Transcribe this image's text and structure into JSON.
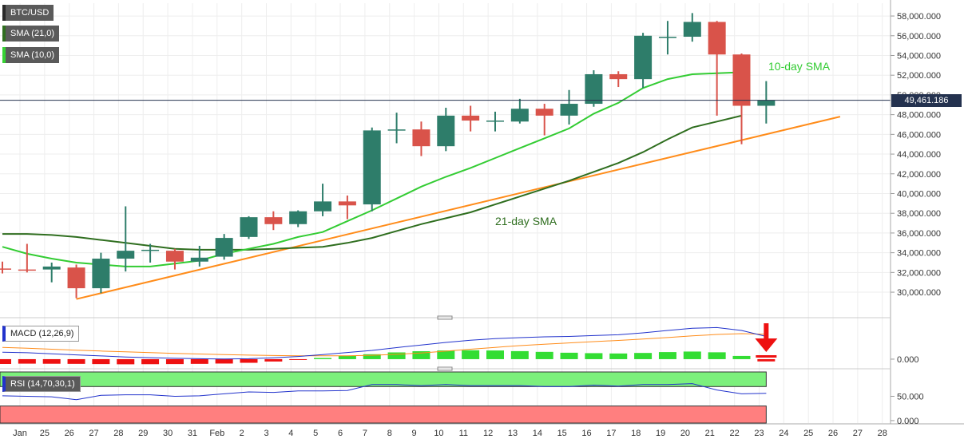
{
  "chart_data": [
    {
      "type": "candlestick",
      "symbol": "BTC/USD",
      "x_ticks": [
        "Jan",
        "25",
        "26",
        "27",
        "28",
        "29",
        "30",
        "31",
        "Feb",
        "2",
        "3",
        "4",
        "5",
        "6",
        "7",
        "8",
        "9",
        "10",
        "11",
        "12",
        "13",
        "14",
        "15",
        "16",
        "17",
        "18",
        "19",
        "20",
        "21",
        "22",
        "23",
        "24",
        "25",
        "26",
        "27",
        "28"
      ],
      "y_ticks": [
        "30,000.000",
        "32,000.000",
        "34,000.000",
        "36,000.000",
        "38,000.000",
        "40,000.000",
        "42,000.000",
        "44,000.000",
        "46,000.000",
        "48,000.000",
        "50,000.000",
        "52,000.000",
        "54,000.000",
        "56,000.000",
        "58,000.000"
      ],
      "y_tick_values": [
        30000,
        32000,
        34000,
        36000,
        38000,
        40000,
        42000,
        44000,
        46000,
        48000,
        50000,
        52000,
        54000,
        56000,
        58000
      ],
      "ylim": [
        27900,
        59300
      ],
      "last_price_label": "49,461.186",
      "last_price": 49461.186,
      "candles": [
        {
          "o": 32400,
          "h": 33100,
          "l": 31900,
          "c": 32300
        },
        {
          "o": 32300,
          "h": 34900,
          "l": 32000,
          "c": 32200
        },
        {
          "o": 32300,
          "h": 33000,
          "l": 31000,
          "c": 32600
        },
        {
          "o": 32500,
          "h": 32800,
          "l": 29400,
          "c": 30400
        },
        {
          "o": 30400,
          "h": 34000,
          "l": 29900,
          "c": 33400
        },
        {
          "o": 33400,
          "h": 38700,
          "l": 32100,
          "c": 34200
        },
        {
          "o": 34200,
          "h": 34900,
          "l": 33000,
          "c": 34300
        },
        {
          "o": 34200,
          "h": 34400,
          "l": 32300,
          "c": 33100
        },
        {
          "o": 33100,
          "h": 34700,
          "l": 32600,
          "c": 33500
        },
        {
          "o": 33600,
          "h": 35900,
          "l": 33300,
          "c": 35500
        },
        {
          "o": 35600,
          "h": 37700,
          "l": 35400,
          "c": 37600
        },
        {
          "o": 37600,
          "h": 38200,
          "l": 36300,
          "c": 36900
        },
        {
          "o": 36900,
          "h": 38300,
          "l": 36600,
          "c": 38200
        },
        {
          "o": 38200,
          "h": 41000,
          "l": 37700,
          "c": 39200
        },
        {
          "o": 39200,
          "h": 39800,
          "l": 37400,
          "c": 38800
        },
        {
          "o": 38900,
          "h": 46700,
          "l": 38200,
          "c": 46400
        },
        {
          "o": 46500,
          "h": 48200,
          "l": 45100,
          "c": 46500
        },
        {
          "o": 46500,
          "h": 47300,
          "l": 43800,
          "c": 44800
        },
        {
          "o": 44800,
          "h": 48700,
          "l": 44300,
          "c": 47900
        },
        {
          "o": 47900,
          "h": 48900,
          "l": 46300,
          "c": 47400
        },
        {
          "o": 47300,
          "h": 48300,
          "l": 46300,
          "c": 47400
        },
        {
          "o": 47300,
          "h": 49600,
          "l": 47100,
          "c": 48600
        },
        {
          "o": 48600,
          "h": 49100,
          "l": 45900,
          "c": 47900
        },
        {
          "o": 47900,
          "h": 50500,
          "l": 47000,
          "c": 49100
        },
        {
          "o": 49100,
          "h": 52500,
          "l": 48800,
          "c": 52100
        },
        {
          "o": 52100,
          "h": 52400,
          "l": 50800,
          "c": 51600
        },
        {
          "o": 51600,
          "h": 56300,
          "l": 50700,
          "c": 56000
        },
        {
          "o": 55900,
          "h": 57500,
          "l": 54100,
          "c": 55900
        },
        {
          "o": 55900,
          "h": 58300,
          "l": 55400,
          "c": 57400
        },
        {
          "o": 57400,
          "h": 57500,
          "l": 47900,
          "c": 54100
        },
        {
          "o": 54100,
          "h": 54200,
          "l": 45000,
          "c": 48900
        },
        {
          "o": 48900,
          "h": 51400,
          "l": 47100,
          "c": 49461
        }
      ],
      "sma10": [
        34600,
        33900,
        33400,
        33000,
        32800,
        32600,
        32600,
        32900,
        33200,
        33900,
        34400,
        34900,
        35600,
        36100,
        37200,
        38300,
        39500,
        40700,
        41700,
        42600,
        43600,
        44600,
        45600,
        46600,
        48100,
        49200,
        50700,
        51600,
        52100,
        52200,
        52300
      ],
      "sma21": [
        35900,
        35900,
        35800,
        35600,
        35300,
        35000,
        34700,
        34400,
        34300,
        34300,
        34300,
        34400,
        34500,
        34600,
        35000,
        35500,
        36200,
        36900,
        37500,
        38100,
        38900,
        39700,
        40500,
        41300,
        42200,
        43100,
        44200,
        45500,
        46700,
        47300,
        47900
      ],
      "sma10_label": "10-day SMA",
      "sma21_label": "21-day SMA",
      "trendline": [
        {
          "i": 3,
          "y": 29300
        },
        {
          "i": 34,
          "y": 47800
        }
      ],
      "legend": [
        "BTC/USD",
        "SMA (21,0)",
        "SMA (10,0)"
      ],
      "colors": {
        "up": "#2e7d6a",
        "down": "#d9534a",
        "sma10": "#33cc33",
        "sma21": "#2f6e1f",
        "trend": "#ff8c1a"
      }
    },
    {
      "type": "macd",
      "label": "MACD (12,26,9)",
      "y_ticks": [
        "0.000"
      ],
      "ylim": [
        -600,
        3500
      ],
      "macd": [
        650,
        600,
        500,
        400,
        300,
        200,
        140,
        80,
        40,
        20,
        40,
        120,
        250,
        420,
        620,
        820,
        1080,
        1320,
        1560,
        1760,
        1910,
        2010,
        2080,
        2120,
        2200,
        2280,
        2460,
        2680,
        2880,
        2950,
        2680,
        2120
      ],
      "signal": [
        1100,
        1020,
        930,
        840,
        760,
        680,
        610,
        540,
        480,
        430,
        380,
        340,
        320,
        310,
        320,
        360,
        450,
        580,
        750,
        930,
        1100,
        1260,
        1400,
        1520,
        1640,
        1750,
        1880,
        2020,
        2170,
        2310,
        2380,
        2330
      ],
      "histogram": [
        -450,
        -420,
        -430,
        -440,
        -460,
        -480,
        -470,
        -460,
        -440,
        -410,
        -340,
        -220,
        -70,
        110,
        300,
        460,
        630,
        740,
        810,
        830,
        810,
        750,
        680,
        600,
        560,
        530,
        580,
        660,
        710,
        640,
        300,
        -210
      ],
      "colors": {
        "macd": "#2233cc",
        "signal": "#ff8c1a",
        "hist_pos": "#33dd33",
        "hist_neg": "#ee1111",
        "arrow": "#ee1111"
      }
    },
    {
      "type": "rsi",
      "label": "RSI (14,70,30,1)",
      "y_ticks": [
        "50.000",
        "0.000"
      ],
      "ylim": [
        -5,
        100
      ],
      "overbought": 70,
      "oversold": 30,
      "rsi": [
        51,
        50,
        49,
        43,
        52,
        53,
        53,
        50,
        51,
        55,
        59,
        58,
        61,
        61,
        62,
        74,
        74,
        72,
        74,
        72,
        72,
        72,
        70,
        70,
        73,
        71,
        74,
        74,
        76,
        63,
        55,
        56
      ],
      "colors": {
        "rsi": "#2233cc",
        "overbought_zone": "#7cf07c",
        "oversold_zone": "#ff7f7f"
      }
    }
  ]
}
